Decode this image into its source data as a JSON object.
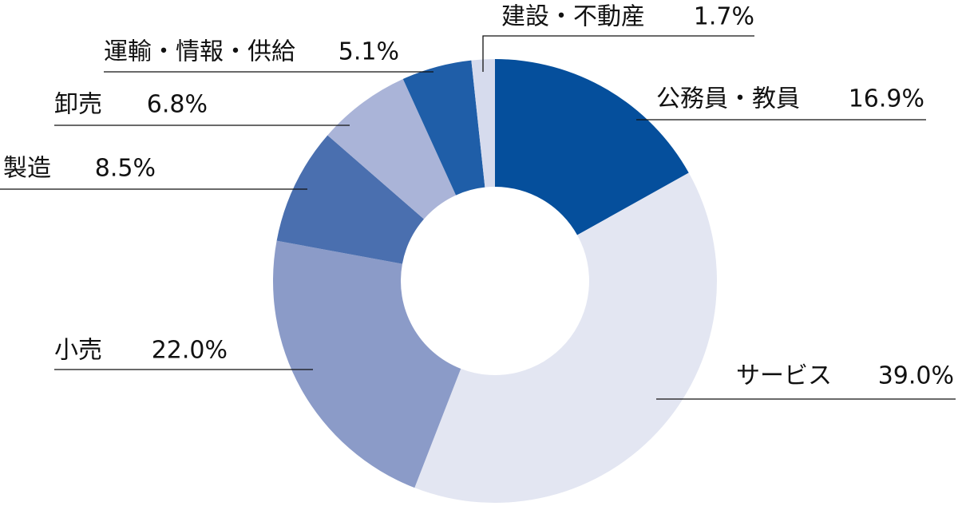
{
  "chart_data": {
    "type": "pie",
    "categories": [
      "公務員・教員",
      "サービス",
      "小売",
      "製造",
      "卸売",
      "運輸・情報・供給",
      "建設・不動産"
    ],
    "values": [
      16.9,
      39.0,
      22.0,
      8.5,
      6.8,
      5.1,
      1.7
    ],
    "value_labels": [
      "16.9%",
      "39.0%",
      "22.0%",
      "8.5%",
      "6.8%",
      "5.1%",
      "1.7%"
    ],
    "colors": [
      "#054f9c",
      "#e3e6f2",
      "#8b9bc8",
      "#4a6faf",
      "#aab4d8",
      "#1f5ea8",
      "#d6dbed"
    ]
  }
}
